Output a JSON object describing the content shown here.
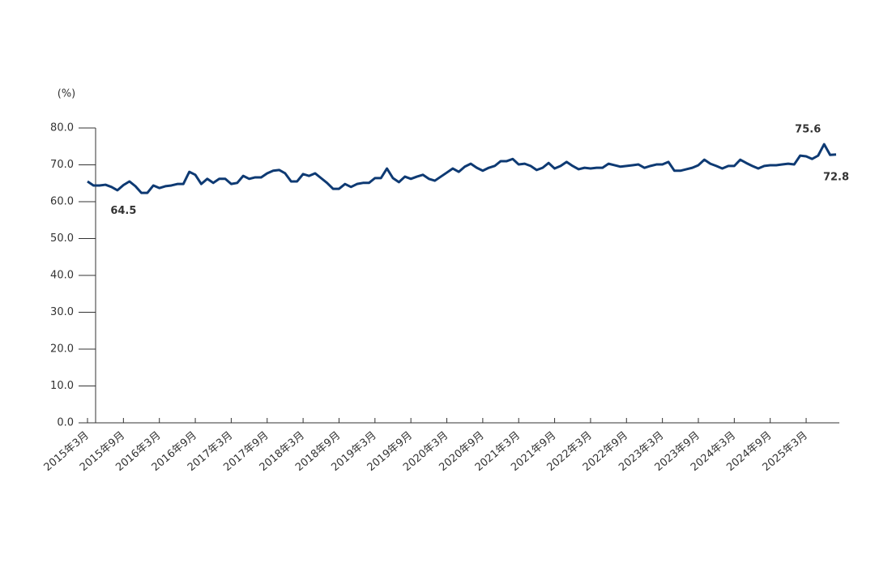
{
  "chart_data": {
    "type": "line",
    "y_label": "(%)",
    "categories": [
      "2015年3月",
      null,
      null,
      null,
      null,
      null,
      "2015年9月",
      null,
      null,
      null,
      null,
      null,
      "2016年3月",
      null,
      null,
      null,
      null,
      null,
      "2016年9月",
      null,
      null,
      null,
      null,
      null,
      "2017年3月",
      null,
      null,
      null,
      null,
      null,
      "2017年9月",
      null,
      null,
      null,
      null,
      null,
      "2018年3月",
      null,
      null,
      null,
      null,
      null,
      "2018年9月",
      null,
      null,
      null,
      null,
      null,
      "2019年3月",
      null,
      null,
      null,
      null,
      null,
      "2019年9月",
      null,
      null,
      null,
      null,
      null,
      "2020年3月",
      null,
      null,
      null,
      null,
      null,
      "2020年9月",
      null,
      null,
      null,
      null,
      null,
      "2021年3月",
      null,
      null,
      null,
      null,
      null,
      "2021年9月",
      null,
      null,
      null,
      null,
      null,
      "2022年3月",
      null,
      null,
      null,
      null,
      null,
      "2022年9月",
      null,
      null,
      null,
      null,
      null,
      "2023年3月",
      null,
      null,
      null,
      null,
      null,
      "2023年9月",
      null,
      null,
      null,
      null,
      null,
      "2024年3月",
      null,
      null,
      null,
      null,
      null,
      "2024年9月",
      null,
      null,
      null,
      null,
      null,
      "2025年3月",
      null,
      null,
      null,
      null,
      null
    ],
    "series": [
      {
        "color": "#0e3a73",
        "values": [
          65.5,
          64.4,
          64.4,
          64.6,
          64.0,
          63.1,
          64.5,
          65.5,
          64.2,
          62.4,
          62.4,
          64.4,
          63.7,
          64.2,
          64.4,
          64.8,
          64.8,
          68.1,
          67.3,
          64.8,
          66.2,
          65.1,
          66.2,
          66.2,
          64.8,
          65.1,
          67.0,
          66.2,
          66.6,
          66.6,
          67.7,
          68.4,
          68.6,
          67.7,
          65.5,
          65.5,
          67.5,
          67.0,
          67.7,
          66.4,
          65.1,
          63.5,
          63.5,
          64.8,
          64.0,
          64.8,
          65.1,
          65.1,
          66.4,
          66.4,
          69.0,
          66.4,
          65.3,
          66.8,
          66.2,
          66.8,
          67.3,
          66.2,
          65.7,
          66.8,
          67.9,
          69.0,
          68.1,
          69.5,
          70.3,
          69.2,
          68.4,
          69.2,
          69.7,
          71.0,
          71.0,
          71.6,
          70.1,
          70.3,
          69.7,
          68.6,
          69.2,
          70.5,
          69.0,
          69.7,
          70.8,
          69.7,
          68.8,
          69.2,
          69.0,
          69.2,
          69.2,
          70.3,
          69.9,
          69.5,
          69.7,
          69.9,
          70.1,
          69.2,
          69.7,
          70.1,
          70.1,
          70.8,
          68.4,
          68.4,
          68.8,
          69.2,
          69.9,
          71.4,
          70.3,
          69.7,
          69.0,
          69.7,
          69.7,
          71.4,
          70.5,
          69.7,
          69.0,
          69.7,
          69.9,
          69.9,
          70.1,
          70.3,
          70.1,
          72.5,
          72.3,
          71.6,
          72.5,
          75.6,
          72.7,
          72.8
        ],
        "value_labels": [
          null,
          null,
          null,
          null,
          null,
          null,
          "64.5",
          null,
          null,
          null,
          null,
          null,
          null,
          null,
          null,
          null,
          null,
          null,
          null,
          null,
          null,
          null,
          null,
          null,
          null,
          null,
          null,
          null,
          null,
          null,
          null,
          null,
          null,
          null,
          null,
          null,
          null,
          null,
          null,
          null,
          null,
          null,
          null,
          null,
          null,
          null,
          null,
          null,
          null,
          null,
          null,
          null,
          null,
          null,
          null,
          null,
          null,
          null,
          null,
          null,
          null,
          null,
          null,
          null,
          null,
          null,
          null,
          null,
          null,
          null,
          null,
          null,
          null,
          null,
          null,
          null,
          null,
          null,
          null,
          null,
          null,
          null,
          null,
          null,
          null,
          null,
          null,
          null,
          null,
          null,
          null,
          null,
          null,
          null,
          null,
          null,
          null,
          null,
          null,
          null,
          null,
          null,
          null,
          null,
          null,
          null,
          null,
          null,
          null,
          null,
          null,
          null,
          null,
          null,
          null,
          null,
          null,
          null,
          null,
          null,
          null,
          null,
          null,
          "75.6",
          null,
          "72.8"
        ]
      }
    ],
    "ylim": [
      0,
      80
    ],
    "yticks": [
      {
        "value": 0,
        "label": "0.0"
      },
      {
        "value": 10,
        "label": "10.0"
      },
      {
        "value": 20,
        "label": "20.0"
      },
      {
        "value": 30,
        "label": "30.0"
      },
      {
        "value": 40,
        "label": "40.0"
      },
      {
        "value": 50,
        "label": "50.0"
      },
      {
        "value": 60,
        "label": "60.0"
      },
      {
        "value": 70,
        "label": "70.0"
      },
      {
        "value": 80,
        "label": "80.0"
      }
    ]
  }
}
